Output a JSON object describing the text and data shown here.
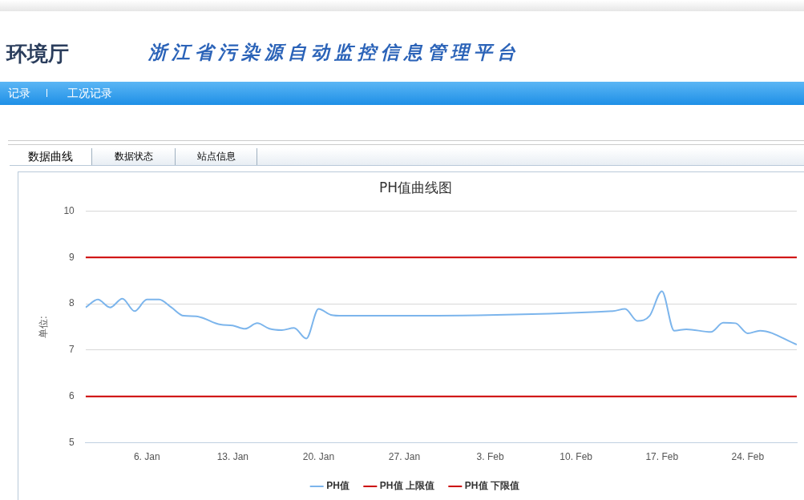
{
  "chart_data": {
    "type": "line",
    "title": "PH值曲线图",
    "ylabel": "单位:",
    "annotations": [
      "环境厅",
      "浙江省污染源自动监控信息管理平台",
      "记录",
      "工况记录",
      "数据曲线",
      "数据状态",
      "站点信息"
    ],
    "xlim": [
      "--01-01",
      "--02-28"
    ],
    "xticks": [
      {
        "value": "--01-06",
        "label": "6. Jan"
      },
      {
        "value": "--01-13",
        "label": "13. Jan"
      },
      {
        "value": "--01-20",
        "label": "20. Jan"
      },
      {
        "value": "--01-27",
        "label": "27. Jan"
      },
      {
        "value": "--02-03",
        "label": "3. Feb"
      },
      {
        "value": "--02-10",
        "label": "10. Feb"
      },
      {
        "value": "--02-17",
        "label": "17. Feb"
      },
      {
        "value": "--02-24",
        "label": "24. Feb"
      }
    ],
    "ylim": [
      5,
      10
    ],
    "yticks": [
      5,
      6,
      7,
      8,
      9,
      10
    ],
    "grid": "y",
    "legend": "bottom",
    "marker": "none",
    "line_style": "solid",
    "series": [
      {
        "name": "PH值",
        "color": "#7cb5ec",
        "x": [
          "--01-01",
          "--01-02",
          "--01-03",
          "--01-04",
          "--01-05",
          "--01-06",
          "--01-07",
          "--01-08",
          "--01-09",
          "--01-10",
          "--01-12",
          "--01-13",
          "--01-14",
          "--01-15",
          "--01-16",
          "--01-17",
          "--01-18",
          "--01-19",
          "--01-20",
          "--01-21",
          "--01-22",
          "--02-13",
          "--02-14",
          "--02-15",
          "--02-16",
          "--02-17",
          "--02-18",
          "--02-19",
          "--02-21",
          "--02-22",
          "--02-23",
          "--02-24",
          "--02-25",
          "--02-28"
        ],
        "values": [
          7.92,
          8.09,
          7.92,
          8.11,
          7.84,
          8.09,
          8.09,
          7.92,
          7.74,
          7.73,
          7.55,
          7.53,
          7.46,
          7.58,
          7.46,
          7.43,
          7.48,
          7.25,
          7.89,
          7.76,
          7.74,
          7.84,
          7.89,
          7.63,
          7.74,
          8.27,
          7.42,
          7.45,
          7.39,
          7.59,
          7.58,
          7.36,
          7.42,
          7.12
        ]
      },
      {
        "name": "PH值 上限值",
        "color": "#cc0000",
        "x": [
          "--01-01",
          "--02-28"
        ],
        "values": [
          9,
          9
        ]
      },
      {
        "name": "PH值 下限值",
        "color": "#cc0000",
        "x": [
          "--01-01",
          "--02-28"
        ],
        "values": [
          6,
          6
        ]
      }
    ]
  }
}
